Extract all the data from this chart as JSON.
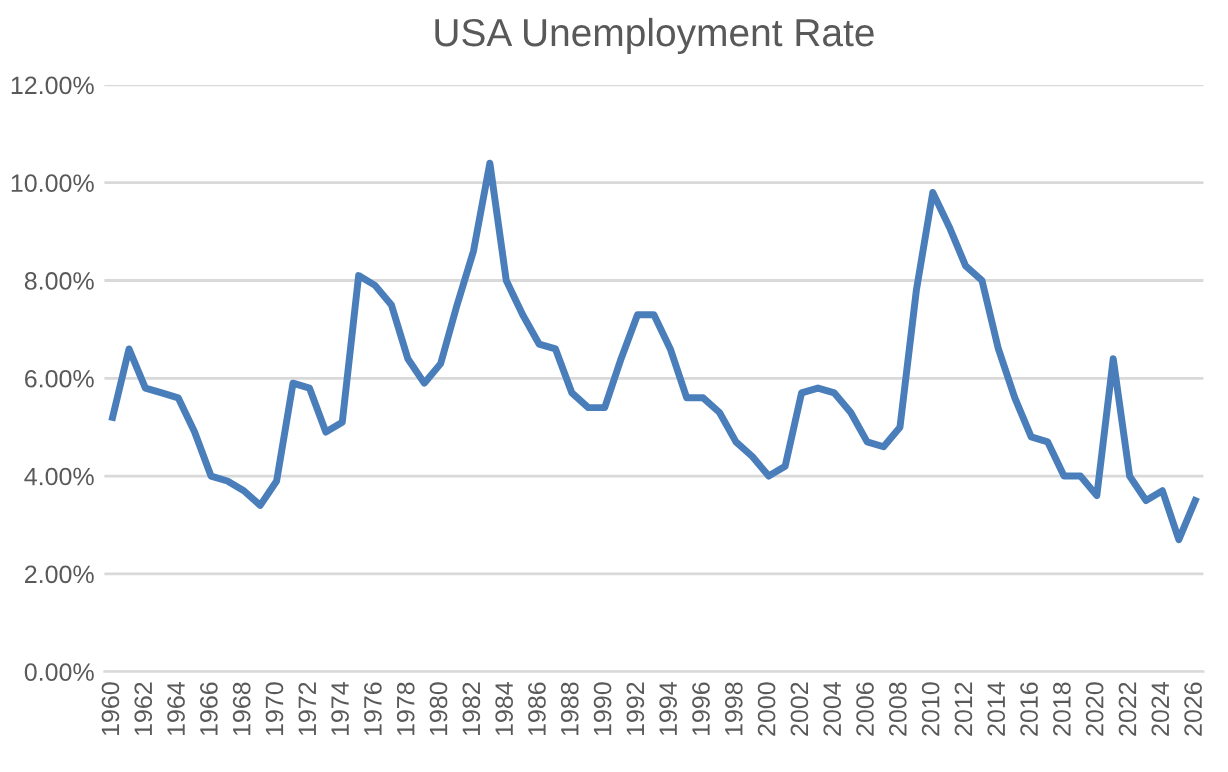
{
  "chart_data": {
    "type": "line",
    "title": "USA Unemployment Rate",
    "categories": [
      "1960",
      null,
      "1962",
      null,
      "1964",
      null,
      "1966",
      null,
      "1968",
      null,
      "1970",
      null,
      "1972",
      null,
      "1974",
      null,
      "1976",
      null,
      "1978",
      null,
      "1980",
      null,
      "1982",
      null,
      "1984",
      null,
      "1986",
      null,
      "1988",
      null,
      "1990",
      null,
      "1992",
      null,
      "1994",
      null,
      "1996",
      null,
      "1998",
      null,
      "2000",
      null,
      "2002",
      null,
      "2004",
      null,
      "2006",
      null,
      "2008",
      null,
      "2010",
      null,
      "2012",
      null,
      "2014",
      null,
      "2016",
      null,
      "2018",
      null,
      "2020",
      null,
      "2022",
      null,
      "2024",
      null,
      "2026"
    ],
    "series": [
      {
        "color": "#4a7ebb",
        "values": [
          5.2,
          6.6,
          5.8,
          5.7,
          5.6,
          4.9,
          4.0,
          3.9,
          3.7,
          3.4,
          3.9,
          5.9,
          5.8,
          4.9,
          5.1,
          8.1,
          7.9,
          7.5,
          6.4,
          5.9,
          6.3,
          7.5,
          8.6,
          10.4,
          8.0,
          7.3,
          6.7,
          6.6,
          5.7,
          5.4,
          5.4,
          6.4,
          7.3,
          7.3,
          6.6,
          5.6,
          5.6,
          5.3,
          4.7,
          4.4,
          4.0,
          4.2,
          5.7,
          5.8,
          5.7,
          5.3,
          4.7,
          4.6,
          5.0,
          7.8,
          9.8,
          9.1,
          8.3,
          8.0,
          6.6,
          5.6,
          4.8,
          4.7,
          4.0,
          4.0,
          3.6,
          6.4,
          4.0,
          3.5,
          3.7,
          2.7,
          3.5
        ]
      }
    ],
    "ylim": [
      0,
      12
    ],
    "yticks": [
      {
        "value": 0,
        "label": "0.00%"
      },
      {
        "value": 2,
        "label": "2.00%"
      },
      {
        "value": 4,
        "label": "4.00%"
      },
      {
        "value": 6,
        "label": "6.00%"
      },
      {
        "value": 8,
        "label": "8.00%"
      },
      {
        "value": 10,
        "label": "10.00%"
      },
      {
        "value": 12,
        "label": "12.00%"
      }
    ],
    "grid": "y",
    "marker": "none",
    "line_style": "solid"
  }
}
